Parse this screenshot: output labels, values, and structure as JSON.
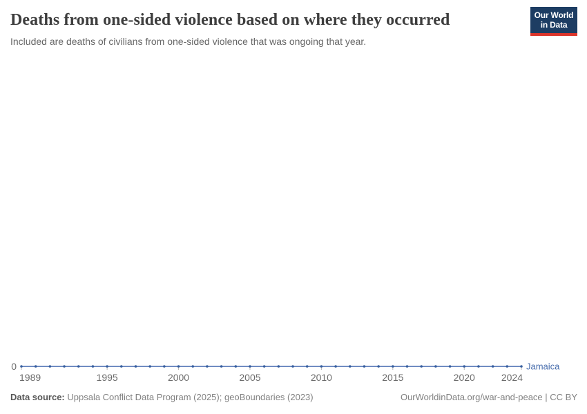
{
  "header": {
    "title": "Deaths from one-sided violence based on where they occurred",
    "subtitle": "Included are deaths of civilians from one-sided violence that was ongoing that year.",
    "logo": {
      "line1": "Our World",
      "line2": "in Data"
    }
  },
  "footer": {
    "data_source_label": "Data source:",
    "data_source_value": " Uppsala Conflict Data Program (2025); geoBoundaries (2023)",
    "link_text": "OurWorldinData.org/war-and-peace | CC BY"
  },
  "colors": {
    "logo_background": "#1d3d63",
    "logo_red_bar": "#dc352b",
    "title_text": "#3d3d3d",
    "subtitle_text": "#666666",
    "axis_text": "#6b6b6b",
    "tick_mark": "#b3b3b3",
    "footer_text": "#818181"
  },
  "chart_data": {
    "type": "line",
    "title": "Deaths from one-sided violence based on where they occurred",
    "xlabel": "",
    "ylabel": "",
    "x": [
      1989,
      1990,
      1991,
      1992,
      1993,
      1994,
      1995,
      1996,
      1997,
      1998,
      1999,
      2000,
      2001,
      2002,
      2003,
      2004,
      2005,
      2006,
      2007,
      2008,
      2009,
      2010,
      2011,
      2012,
      2013,
      2014,
      2015,
      2016,
      2017,
      2018,
      2019,
      2020,
      2021,
      2022,
      2023,
      2024
    ],
    "series": [
      {
        "name": "Jamaica",
        "line_color": "#5b7cba",
        "point_color": "#39609f",
        "label_color": "#4a6fae",
        "values": [
          0,
          0,
          0,
          0,
          0,
          0,
          0,
          0,
          0,
          0,
          0,
          0,
          0,
          0,
          0,
          0,
          0,
          0,
          0,
          0,
          0,
          0,
          0,
          0,
          0,
          0,
          0,
          0,
          0,
          0,
          0,
          0,
          0,
          0,
          0,
          0
        ]
      }
    ],
    "x_ticks": [
      1989,
      1995,
      2000,
      2005,
      2010,
      2015,
      2020,
      2024
    ],
    "x_tick_labels": [
      "1989",
      "1995",
      "2000",
      "2005",
      "2010",
      "2015",
      "2020",
      "2024"
    ],
    "y_ticks": [
      0
    ],
    "y_tick_labels": [
      "0"
    ],
    "xlim": [
      1989,
      2024
    ],
    "ylim": [
      0,
      1
    ],
    "grid": false,
    "legend_position": "end-of-line"
  }
}
